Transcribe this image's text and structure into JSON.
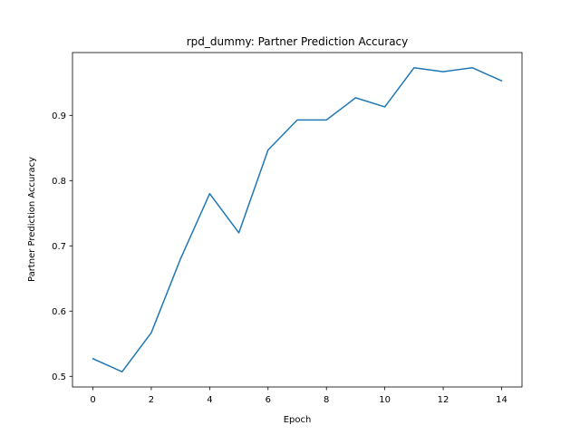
{
  "chart_data": {
    "type": "line",
    "title": "rpd_dummy: Partner Prediction Accuracy",
    "xlabel": "Epoch",
    "ylabel": "Partner Prediction Accuracy",
    "x": [
      0,
      1,
      2,
      3,
      4,
      5,
      6,
      7,
      8,
      9,
      10,
      11,
      12,
      13,
      14
    ],
    "series": [
      {
        "values": [
          0.527,
          0.507,
          0.567,
          0.68,
          0.78,
          0.72,
          0.847,
          0.893,
          0.893,
          0.927,
          0.913,
          0.973,
          0.967,
          0.973,
          0.953
        ]
      }
    ],
    "xlim": [
      -0.7,
      14.7
    ],
    "ylim": [
      0.4837,
      0.9963
    ],
    "xticks": [
      0,
      2,
      4,
      6,
      8,
      10,
      12,
      14
    ],
    "yticks": [
      0.5,
      0.6,
      0.7,
      0.8,
      0.9
    ],
    "xtick_labels": [
      "0",
      "2",
      "4",
      "6",
      "8",
      "10",
      "12",
      "14"
    ],
    "ytick_labels": [
      "0.5",
      "0.6",
      "0.7",
      "0.8",
      "0.9"
    ],
    "grid": false,
    "line_color": "#1f77b4"
  }
}
